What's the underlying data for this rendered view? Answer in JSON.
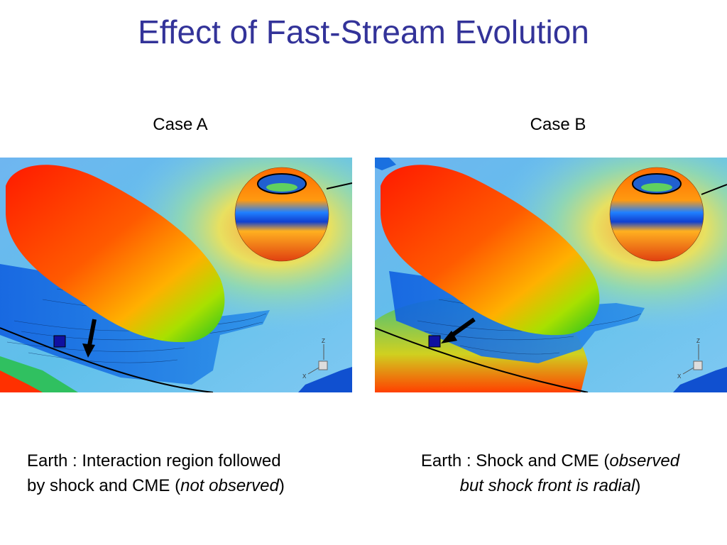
{
  "slide": {
    "title": "Effect of Fast-Stream Evolution"
  },
  "panels": [
    {
      "label": "Case A",
      "caption_line1": "Earth : Interaction region followed",
      "caption_line2_prefix": "by shock and CME (",
      "caption_line2_italic": "not observed",
      "caption_line2_suffix": ")",
      "axis_z": "Z",
      "axis_x": "X"
    },
    {
      "label": "Case B",
      "caption_line1_prefix": "Earth : Shock and CME (",
      "caption_line1_italic": "observed",
      "caption_line2_italic": "but shock front is radial",
      "caption_line2_suffix": ")",
      "axis_z": "Z",
      "axis_x": "X"
    }
  ]
}
